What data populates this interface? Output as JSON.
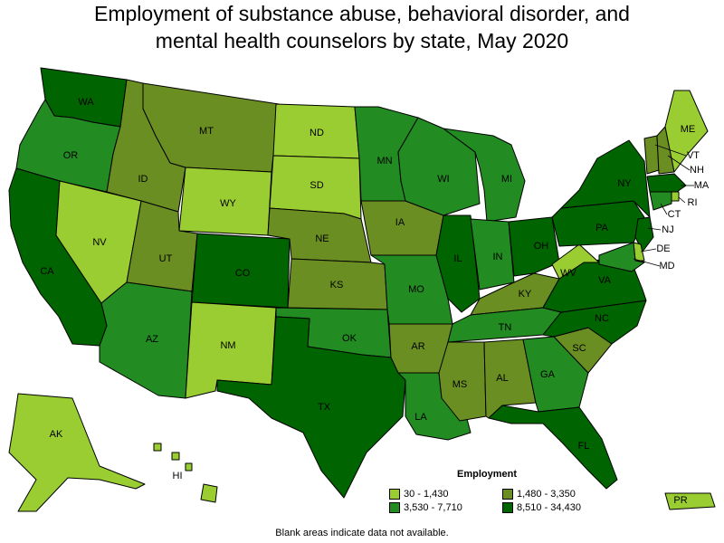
{
  "title_line1": "Employment of substance abuse, behavioral disorder, and",
  "title_line2": "mental health counselors by state, May 2020",
  "legend": {
    "title": "Employment",
    "items": [
      {
        "label": "30 - 1,430",
        "color": "#9acd32"
      },
      {
        "label": "1,480 - 3,350",
        "color": "#6b8e23"
      },
      {
        "label": "3,530 - 7,710",
        "color": "#228b22"
      },
      {
        "label": "8,510 - 34,430",
        "color": "#006400"
      }
    ]
  },
  "footnote": "Blank areas indicate data not available.",
  "states": [
    {
      "abbr": "WA",
      "bin": 3
    },
    {
      "abbr": "OR",
      "bin": 2
    },
    {
      "abbr": "CA",
      "bin": 3
    },
    {
      "abbr": "NV",
      "bin": 0
    },
    {
      "abbr": "ID",
      "bin": 1
    },
    {
      "abbr": "MT",
      "bin": 1
    },
    {
      "abbr": "WY",
      "bin": 0
    },
    {
      "abbr": "UT",
      "bin": 1
    },
    {
      "abbr": "AZ",
      "bin": 2
    },
    {
      "abbr": "CO",
      "bin": 3
    },
    {
      "abbr": "NM",
      "bin": 0
    },
    {
      "abbr": "ND",
      "bin": 0
    },
    {
      "abbr": "SD",
      "bin": 0
    },
    {
      "abbr": "NE",
      "bin": 1
    },
    {
      "abbr": "KS",
      "bin": 1
    },
    {
      "abbr": "OK",
      "bin": 2
    },
    {
      "abbr": "TX",
      "bin": 3
    },
    {
      "abbr": "MN",
      "bin": 2
    },
    {
      "abbr": "IA",
      "bin": 1
    },
    {
      "abbr": "MO",
      "bin": 2
    },
    {
      "abbr": "AR",
      "bin": 1
    },
    {
      "abbr": "LA",
      "bin": 2
    },
    {
      "abbr": "WI",
      "bin": 2
    },
    {
      "abbr": "IL",
      "bin": 3
    },
    {
      "abbr": "MI",
      "bin": 2
    },
    {
      "abbr": "IN",
      "bin": 2
    },
    {
      "abbr": "OH",
      "bin": 3
    },
    {
      "abbr": "KY",
      "bin": 1
    },
    {
      "abbr": "TN",
      "bin": 2
    },
    {
      "abbr": "MS",
      "bin": 1
    },
    {
      "abbr": "AL",
      "bin": 1
    },
    {
      "abbr": "GA",
      "bin": 2
    },
    {
      "abbr": "FL",
      "bin": 3
    },
    {
      "abbr": "SC",
      "bin": 1
    },
    {
      "abbr": "NC",
      "bin": 3
    },
    {
      "abbr": "VA",
      "bin": 3
    },
    {
      "abbr": "WV",
      "bin": 0
    },
    {
      "abbr": "PA",
      "bin": 3
    },
    {
      "abbr": "NY",
      "bin": 3
    },
    {
      "abbr": "VT",
      "bin": 1
    },
    {
      "abbr": "NH",
      "bin": 1
    },
    {
      "abbr": "ME",
      "bin": 0
    },
    {
      "abbr": "MA",
      "bin": 3
    },
    {
      "abbr": "RI",
      "bin": 0
    },
    {
      "abbr": "CT",
      "bin": 2
    },
    {
      "abbr": "NJ",
      "bin": 3
    },
    {
      "abbr": "DE",
      "bin": 0
    },
    {
      "abbr": "MD",
      "bin": 2
    },
    {
      "abbr": "AK",
      "bin": 0
    },
    {
      "abbr": "HI",
      "bin": 0
    },
    {
      "abbr": "PR",
      "bin": 0
    }
  ]
}
